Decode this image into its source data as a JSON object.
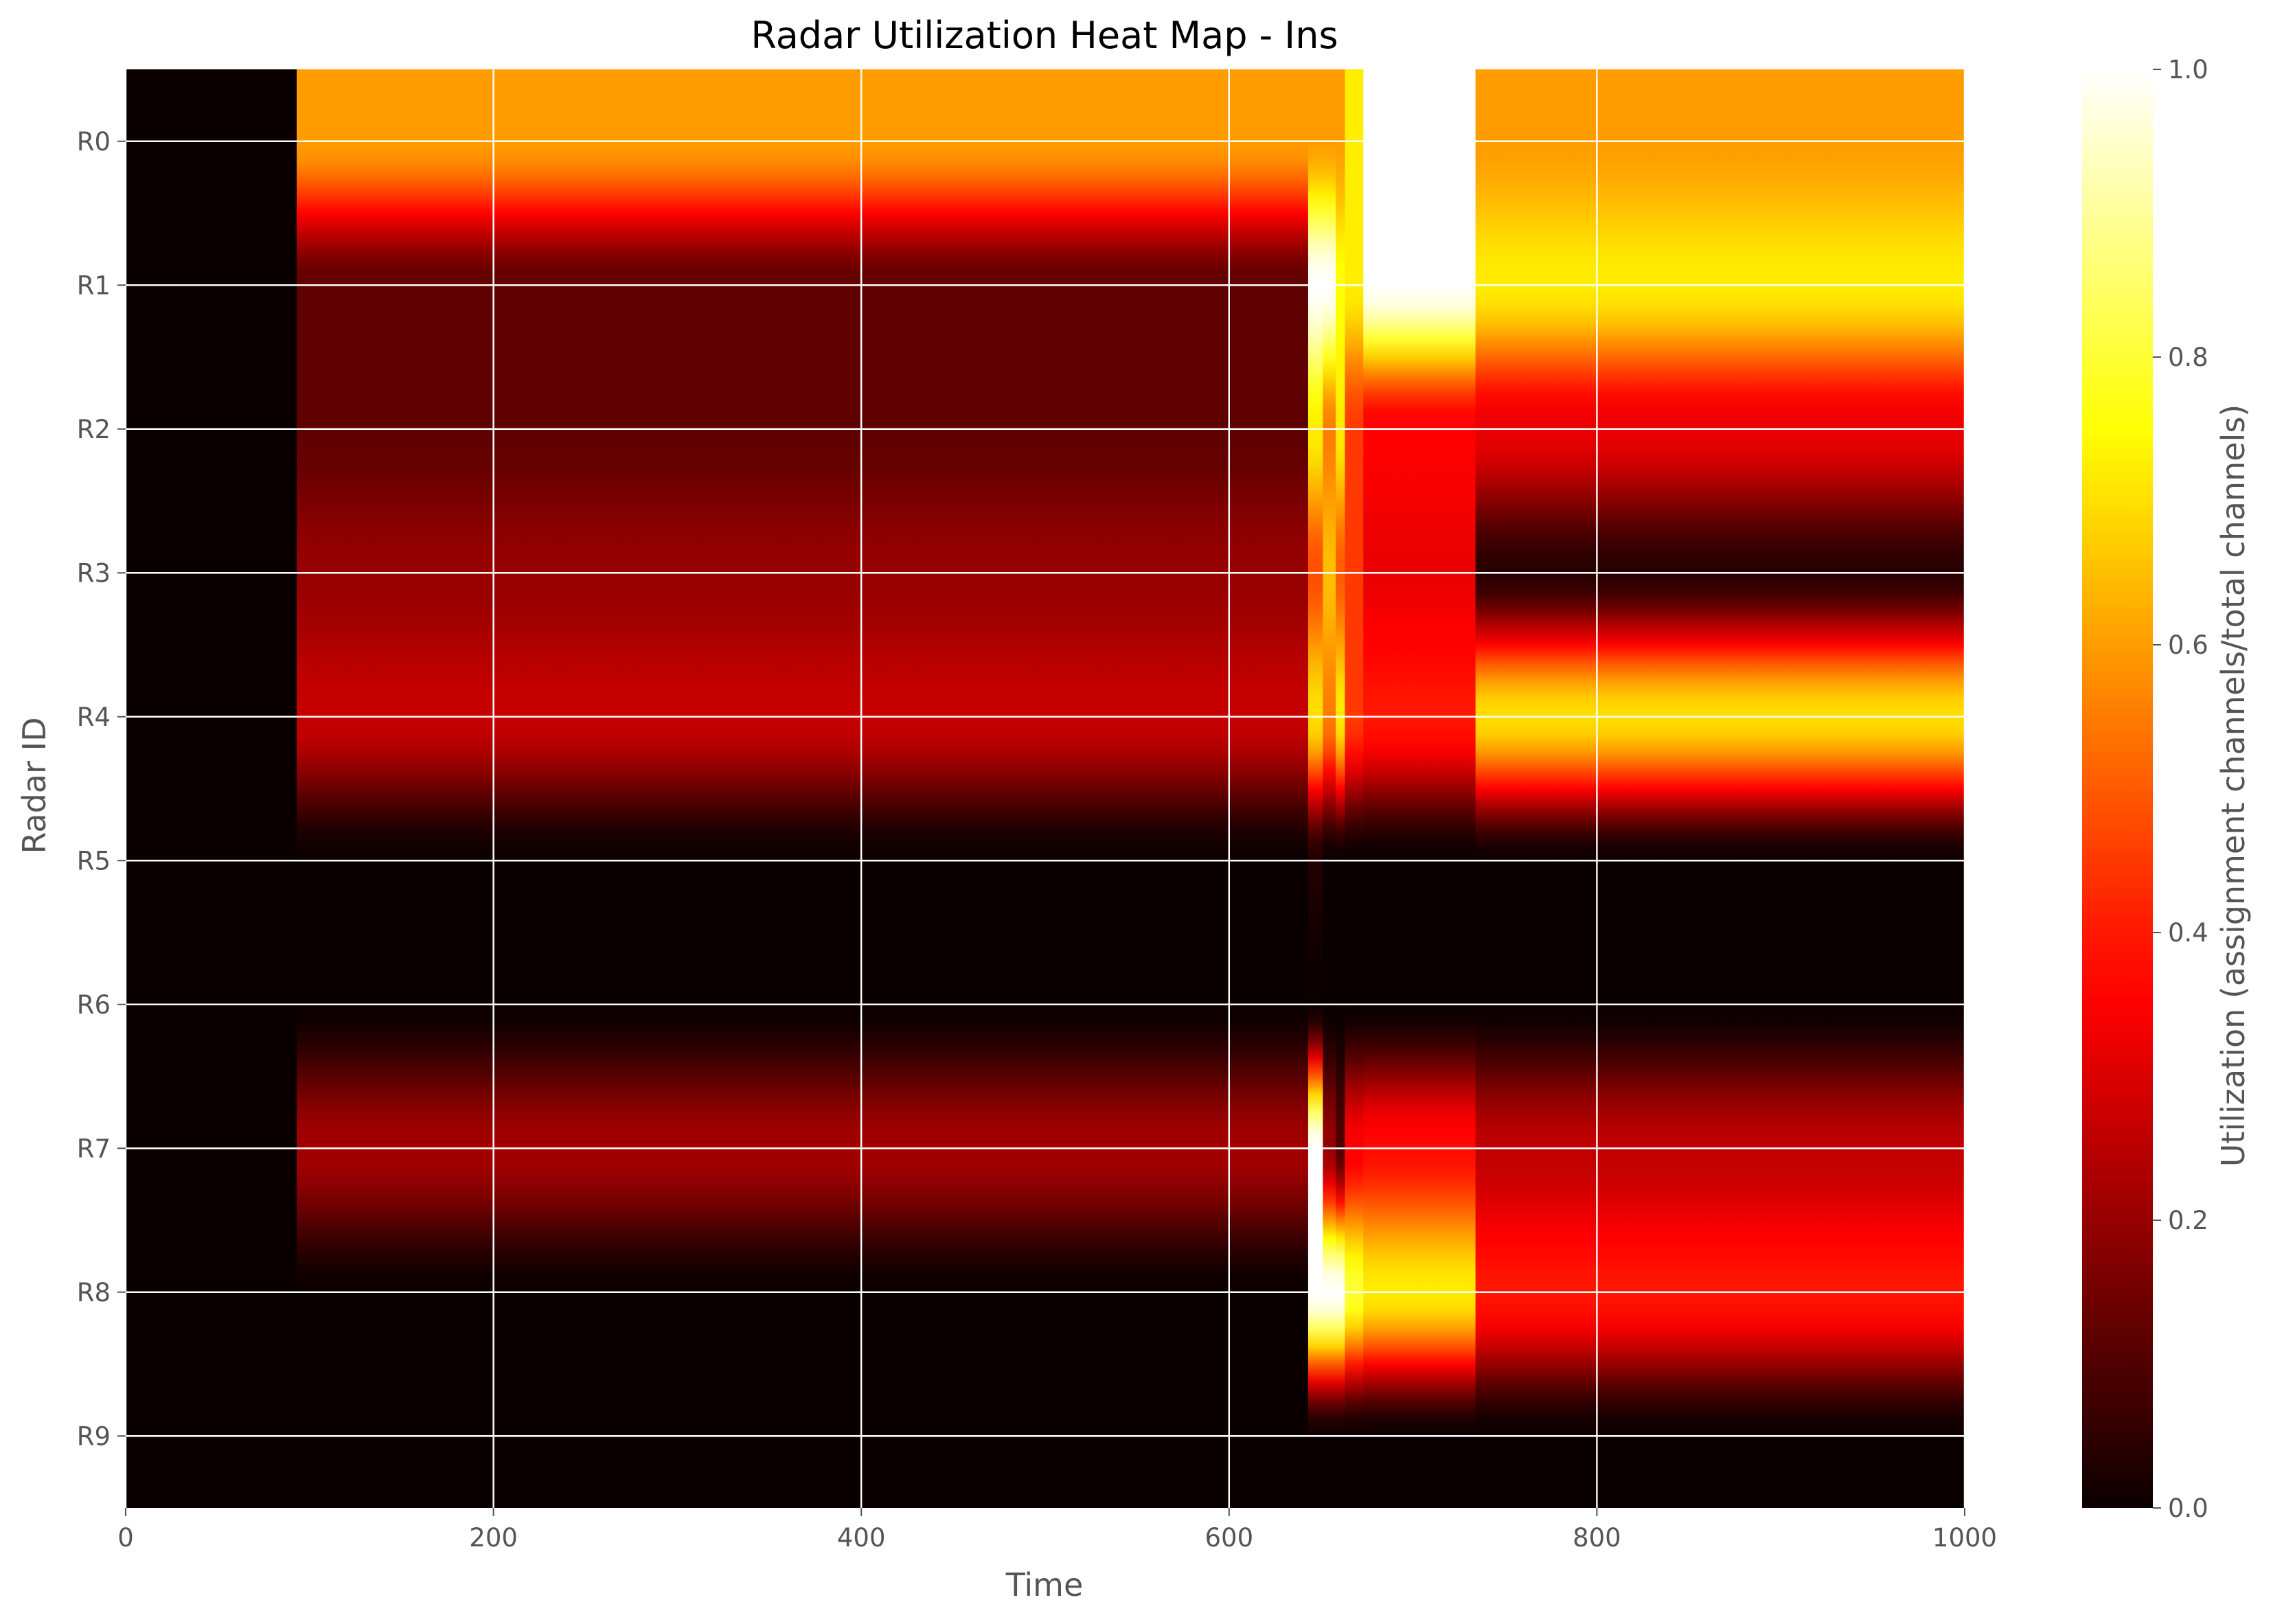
{
  "chart_data": {
    "type": "heatmap",
    "title": "Radar Utilization Heat Map - Ins",
    "xlabel": "Time",
    "ylabel": "Radar ID",
    "xlim": [
      0,
      1000
    ],
    "x_ticks": [
      "0",
      "200",
      "400",
      "600",
      "800",
      "1000"
    ],
    "x_tick_values": [
      0,
      200,
      400,
      600,
      800,
      1000
    ],
    "rows": [
      "R0",
      "R1",
      "R2",
      "R3",
      "R4",
      "R5",
      "R6",
      "R7",
      "R8",
      "R9"
    ],
    "grid": true,
    "colormap": "hot",
    "interpolation": "smooth (bicubic-like between rows)",
    "colorbar": {
      "label": "Utilization (assignment channels/total channels)",
      "range": [
        0.0,
        1.0
      ],
      "ticks": [
        "0.0",
        "0.2",
        "0.4",
        "0.6",
        "0.8",
        "1.0"
      ],
      "tick_values": [
        0.0,
        0.2,
        0.4,
        0.6,
        0.8,
        1.0
      ]
    },
    "segments": [
      {
        "t_start": 0,
        "t_end": 93,
        "values": [
          0.0,
          0.0,
          0.0,
          0.0,
          0.0,
          0.0,
          0.0,
          0.0,
          0.0,
          0.0
        ]
      },
      {
        "t_start": 93,
        "t_end": 643,
        "values": [
          0.6,
          0.12,
          0.12,
          0.2,
          0.27,
          0.0,
          0.0,
          0.22,
          0.0,
          0.0
        ]
      },
      {
        "t_start": 643,
        "t_end": 651,
        "values": [
          0.6,
          1.0,
          0.72,
          0.48,
          0.7,
          0.03,
          0.0,
          1.0,
          1.0,
          0.0
        ]
      },
      {
        "t_start": 651,
        "t_end": 658,
        "values": [
          0.6,
          1.0,
          0.55,
          0.65,
          0.55,
          0.0,
          0.0,
          0.2,
          1.0,
          0.0
        ]
      },
      {
        "t_start": 658,
        "t_end": 663,
        "values": [
          0.6,
          0.75,
          0.72,
          0.5,
          0.72,
          0.0,
          0.0,
          0.1,
          1.0,
          0.0
        ]
      },
      {
        "t_start": 663,
        "t_end": 673,
        "values": [
          0.72,
          0.72,
          0.45,
          0.45,
          0.45,
          0.0,
          0.0,
          0.35,
          0.8,
          0.0
        ]
      },
      {
        "t_start": 673,
        "t_end": 734,
        "values": [
          1.0,
          1.0,
          0.35,
          0.32,
          0.4,
          0.0,
          0.0,
          0.38,
          0.72,
          0.0
        ]
      },
      {
        "t_start": 734,
        "t_end": 1000,
        "values": [
          0.6,
          0.72,
          0.32,
          0.04,
          0.7,
          0.0,
          0.0,
          0.26,
          0.4,
          0.0
        ]
      }
    ]
  }
}
